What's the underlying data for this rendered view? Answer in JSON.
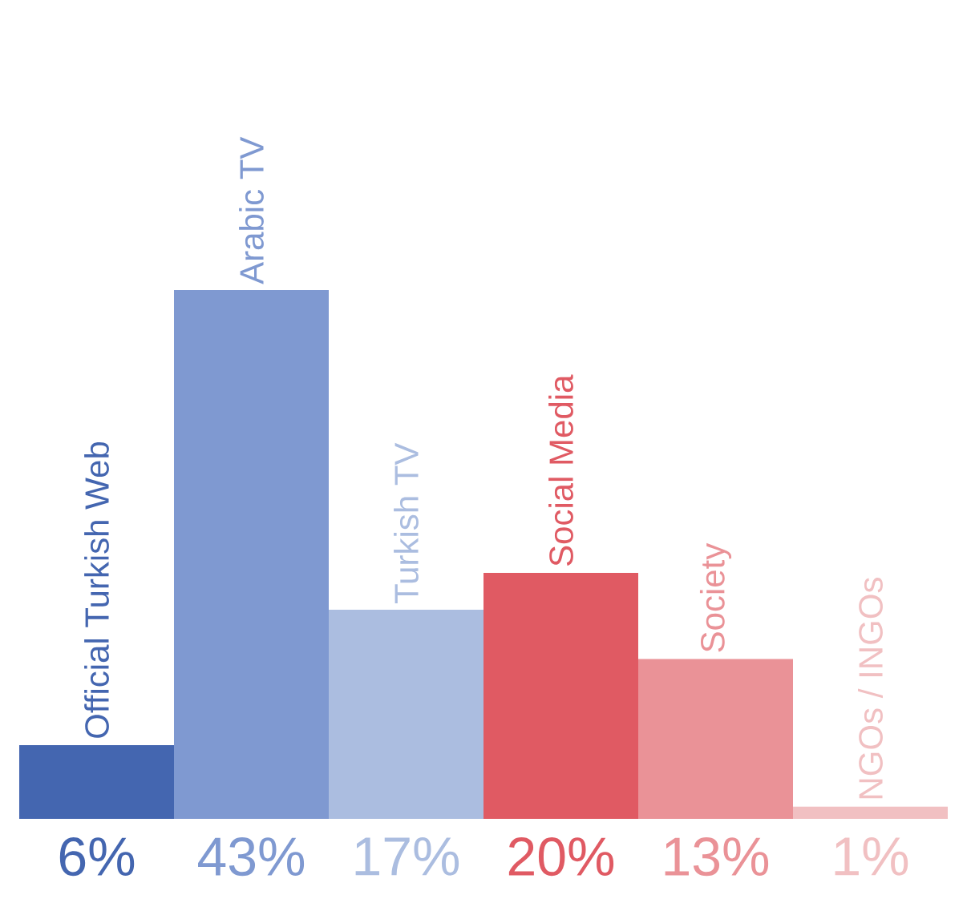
{
  "chart_data": {
    "type": "bar",
    "categories": [
      "Official Turkish Web",
      "Arabic TV",
      "Turkish TV",
      "Social Media",
      "Society",
      "NGOs / INGOs"
    ],
    "values": [
      6,
      43,
      17,
      20,
      13,
      1
    ],
    "value_labels": [
      "6%",
      "43%",
      "17%",
      "20%",
      "13%",
      "1%"
    ],
    "colors": [
      "#4466b0",
      "#7f99d1",
      "#abbde0",
      "#e05a63",
      "#ea9297",
      "#f1c0c2"
    ]
  }
}
